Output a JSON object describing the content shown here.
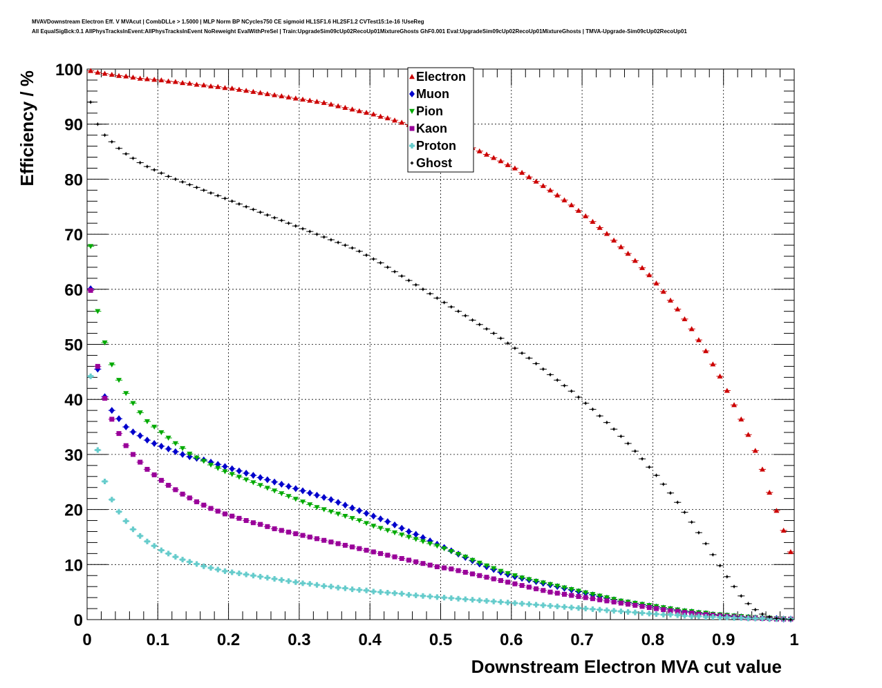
{
  "header": {
    "line1": "MVAVDownstream Electron Eff. V MVAcut | CombDLLe > 1.5000 | MLP Norm BP NCycles750 CE sigmoid HL1SF1.6 HL2SF1.2 CVTest15:1e-16 !UseReg",
    "line2": "All EqualSigBck:0.1 AllPhysTracksInEvent:AllPhysTracksInEvent NoReweight EvalWithPreSel | Train:UpgradeSim09cUp02RecoUp01MixtureGhosts GhF0.001 Eval:UpgradeSim09cUp02RecoUp01MixtureGhosts | TMVA-Upgrade-Sim09cUp02RecoUp01"
  },
  "chart_data": {
    "type": "scatter",
    "title": "",
    "xlabel": "Downstream Electron MVA cut value",
    "ylabel": "Efficiency / %",
    "xlim": [
      0,
      1
    ],
    "ylim": [
      0,
      100
    ],
    "grid": true,
    "legend_position": "top-center",
    "x_ticks": [
      "0",
      "0.1",
      "0.2",
      "0.3",
      "0.4",
      "0.5",
      "0.6",
      "0.7",
      "0.8",
      "0.9",
      "1"
    ],
    "y_ticks": [
      "0",
      "10",
      "20",
      "30",
      "40",
      "50",
      "60",
      "70",
      "80",
      "90",
      "100"
    ],
    "x": [
      0.005,
      0.015,
      0.025,
      0.035,
      0.045,
      0.055,
      0.065,
      0.075,
      0.085,
      0.095,
      0.105,
      0.115,
      0.125,
      0.135,
      0.145,
      0.155,
      0.165,
      0.175,
      0.185,
      0.195,
      0.205,
      0.215,
      0.225,
      0.235,
      0.245,
      0.255,
      0.265,
      0.275,
      0.285,
      0.295,
      0.305,
      0.315,
      0.325,
      0.335,
      0.345,
      0.355,
      0.365,
      0.375,
      0.385,
      0.395,
      0.405,
      0.415,
      0.425,
      0.435,
      0.445,
      0.455,
      0.465,
      0.475,
      0.485,
      0.495,
      0.505,
      0.515,
      0.525,
      0.535,
      0.545,
      0.555,
      0.565,
      0.575,
      0.585,
      0.595,
      0.605,
      0.615,
      0.625,
      0.635,
      0.645,
      0.655,
      0.665,
      0.675,
      0.685,
      0.695,
      0.705,
      0.715,
      0.725,
      0.735,
      0.745,
      0.755,
      0.765,
      0.775,
      0.785,
      0.795,
      0.805,
      0.815,
      0.825,
      0.835,
      0.845,
      0.855,
      0.865,
      0.875,
      0.885,
      0.895,
      0.905,
      0.915,
      0.925,
      0.935,
      0.945,
      0.955,
      0.965,
      0.975,
      0.985,
      0.995
    ],
    "series": [
      {
        "name": "Electron",
        "color": "#cc0000",
        "marker": "triangle-up",
        "values": [
          99.7,
          99.4,
          99.2,
          99.0,
          98.8,
          98.7,
          98.5,
          98.3,
          98.2,
          98.1,
          98.0,
          97.8,
          97.7,
          97.5,
          97.4,
          97.2,
          97.1,
          96.9,
          96.8,
          96.6,
          96.5,
          96.3,
          96.1,
          95.9,
          95.7,
          95.5,
          95.3,
          95.1,
          94.9,
          94.7,
          94.5,
          94.3,
          94.1,
          93.9,
          93.6,
          93.3,
          93.0,
          92.7,
          92.4,
          92.1,
          91.8,
          91.4,
          91.1,
          90.7,
          90.3,
          89.9,
          89.5,
          89.1,
          88.7,
          88.2,
          87.8,
          87.3,
          86.8,
          86.2,
          85.7,
          85.1,
          84.5,
          83.9,
          83.3,
          82.6,
          82.0,
          81.2,
          80.4,
          79.6,
          78.8,
          78.0,
          77.1,
          76.2,
          75.3,
          74.3,
          73.3,
          72.3,
          71.2,
          70.1,
          68.9,
          67.7,
          66.5,
          65.2,
          63.9,
          62.6,
          61.1,
          59.6,
          58.0,
          56.4,
          54.6,
          52.8,
          50.8,
          48.8,
          46.4,
          44.2,
          41.6,
          39.0,
          36.4,
          33.6,
          30.7,
          27.3,
          23.1,
          19.8,
          16.2,
          12.3
        ]
      },
      {
        "name": "Muon",
        "color": "#0000cc",
        "marker": "diamond",
        "values": [
          60.1,
          45.5,
          40.5,
          38.0,
          36.5,
          35.0,
          34.1,
          33.4,
          32.6,
          32.0,
          31.5,
          31.0,
          30.5,
          30.0,
          29.6,
          29.3,
          29.0,
          28.6,
          28.2,
          27.8,
          27.4,
          27.0,
          26.6,
          26.2,
          25.8,
          25.4,
          25.0,
          24.6,
          24.2,
          23.8,
          23.4,
          23.0,
          22.6,
          22.2,
          21.8,
          21.3,
          20.8,
          20.3,
          19.8,
          19.3,
          18.8,
          18.3,
          17.8,
          17.2,
          16.6,
          16.0,
          15.5,
          14.9,
          14.3,
          13.7,
          13.1,
          12.5,
          11.9,
          11.3,
          10.7,
          10.1,
          9.6,
          9.1,
          8.6,
          8.2,
          7.8,
          7.5,
          7.2,
          6.9,
          6.6,
          6.3,
          6.0,
          5.7,
          5.4,
          5.1,
          4.8,
          4.5,
          4.2,
          3.9,
          3.6,
          3.3,
          3.1,
          2.9,
          2.7,
          2.5,
          2.3,
          2.1,
          1.9,
          1.7,
          1.5,
          1.4,
          1.2,
          1.1,
          0.9,
          0.8,
          0.7,
          0.6,
          0.5,
          0.4,
          0.3,
          0.3,
          0.2,
          0.2,
          0.1,
          0.1
        ]
      },
      {
        "name": "Pion",
        "color": "#00aa00",
        "marker": "triangle-down",
        "values": [
          67.8,
          56.0,
          50.3,
          46.3,
          43.5,
          41.1,
          39.3,
          37.6,
          36.0,
          35.0,
          34.0,
          33.0,
          32.0,
          31.1,
          30.1,
          29.4,
          28.8,
          28.1,
          27.5,
          26.9,
          26.4,
          25.9,
          25.4,
          24.9,
          24.4,
          23.9,
          23.4,
          22.9,
          22.4,
          21.9,
          21.4,
          20.9,
          20.4,
          20.0,
          19.6,
          19.2,
          18.8,
          18.4,
          18.0,
          17.5,
          17.0,
          16.6,
          16.2,
          15.8,
          15.4,
          15.0,
          14.6,
          14.2,
          13.8,
          13.4,
          12.9,
          12.4,
          11.9,
          11.4,
          10.8,
          10.3,
          9.8,
          9.3,
          8.8,
          8.4,
          8.0,
          7.6,
          7.3,
          7.0,
          6.7,
          6.4,
          6.1,
          5.8,
          5.5,
          5.2,
          4.9,
          4.6,
          4.3,
          4.0,
          3.7,
          3.4,
          3.2,
          3.0,
          2.8,
          2.6,
          2.4,
          2.2,
          2.0,
          1.8,
          1.6,
          1.5,
          1.3,
          1.2,
          1.0,
          0.9,
          0.8,
          0.7,
          0.6,
          0.5,
          0.4,
          0.3,
          0.3,
          0.2,
          0.2,
          0.1
        ]
      },
      {
        "name": "Kaon",
        "color": "#990099",
        "marker": "square",
        "values": [
          59.8,
          46.0,
          40.2,
          36.4,
          33.8,
          31.6,
          30.0,
          28.6,
          27.3,
          26.3,
          25.3,
          24.4,
          23.6,
          22.8,
          22.1,
          21.4,
          20.8,
          20.2,
          19.7,
          19.2,
          18.8,
          18.4,
          18.0,
          17.6,
          17.3,
          16.9,
          16.5,
          16.2,
          15.9,
          15.6,
          15.3,
          15.0,
          14.7,
          14.4,
          14.1,
          13.8,
          13.5,
          13.2,
          12.9,
          12.6,
          12.3,
          12.0,
          11.7,
          11.4,
          11.1,
          10.8,
          10.5,
          10.2,
          9.9,
          9.6,
          9.4,
          9.2,
          8.9,
          8.6,
          8.3,
          8.0,
          7.7,
          7.4,
          7.1,
          6.8,
          6.5,
          6.2,
          5.9,
          5.6,
          5.3,
          5.0,
          4.8,
          4.6,
          4.4,
          4.2,
          4.0,
          3.8,
          3.6,
          3.4,
          3.2,
          3.0,
          2.8,
          2.6,
          2.4,
          2.2,
          2.0,
          1.8,
          1.6,
          1.5,
          1.3,
          1.2,
          1.0,
          0.9,
          0.8,
          0.7,
          0.6,
          0.5,
          0.4,
          0.3,
          0.3,
          0.2,
          0.2,
          0.1,
          0.1,
          0.1
        ]
      },
      {
        "name": "Proton",
        "color": "#66cccc",
        "marker": "cross",
        "values": [
          44.2,
          30.8,
          25.1,
          21.8,
          19.6,
          17.9,
          16.4,
          15.2,
          14.2,
          13.4,
          12.6,
          12.0,
          11.4,
          10.9,
          10.5,
          10.1,
          9.7,
          9.4,
          9.1,
          8.8,
          8.6,
          8.4,
          8.2,
          8.0,
          7.8,
          7.6,
          7.4,
          7.2,
          7.0,
          6.8,
          6.6,
          6.5,
          6.3,
          6.1,
          6.0,
          5.8,
          5.7,
          5.5,
          5.4,
          5.3,
          5.1,
          5.0,
          4.9,
          4.8,
          4.7,
          4.5,
          4.4,
          4.3,
          4.2,
          4.1,
          4.0,
          3.9,
          3.8,
          3.7,
          3.6,
          3.5,
          3.4,
          3.3,
          3.2,
          3.1,
          3.0,
          2.9,
          2.8,
          2.7,
          2.6,
          2.5,
          2.4,
          2.3,
          2.2,
          2.1,
          2.0,
          1.9,
          1.8,
          1.7,
          1.6,
          1.5,
          1.4,
          1.3,
          1.2,
          1.1,
          1.0,
          0.9,
          0.9,
          0.8,
          0.7,
          0.6,
          0.6,
          0.5,
          0.5,
          0.4,
          0.4,
          0.3,
          0.3,
          0.2,
          0.2,
          0.2,
          0.1,
          0.1,
          0.1,
          0.1
        ]
      },
      {
        "name": "Ghost",
        "color": "#000000",
        "marker": "star",
        "values": [
          94.0,
          90.0,
          88.0,
          86.8,
          85.6,
          84.6,
          83.8,
          83.0,
          82.3,
          81.7,
          81.1,
          80.5,
          80.0,
          79.5,
          79.0,
          78.5,
          78.0,
          77.5,
          77.0,
          76.5,
          76.0,
          75.5,
          75.0,
          74.5,
          74.0,
          73.5,
          73.0,
          72.5,
          72.0,
          71.5,
          71.0,
          70.5,
          70.0,
          69.5,
          69.0,
          68.5,
          68.0,
          67.5,
          66.9,
          66.2,
          65.5,
          64.8,
          64.0,
          63.2,
          62.4,
          61.6,
          60.8,
          60.0,
          59.2,
          58.4,
          57.6,
          56.8,
          56.0,
          55.2,
          54.4,
          53.6,
          52.8,
          52.0,
          51.1,
          50.2,
          49.3,
          48.4,
          47.5,
          46.5,
          45.5,
          44.5,
          43.5,
          42.5,
          41.5,
          40.4,
          39.3,
          38.2,
          37.0,
          35.8,
          34.6,
          33.3,
          32.0,
          30.6,
          29.2,
          27.7,
          26.2,
          24.6,
          23.0,
          21.3,
          19.5,
          17.7,
          15.8,
          13.8,
          11.8,
          9.8,
          7.8,
          6.0,
          4.3,
          2.9,
          1.8,
          1.0,
          0.5,
          0.2,
          0.1,
          0.0
        ]
      }
    ]
  }
}
